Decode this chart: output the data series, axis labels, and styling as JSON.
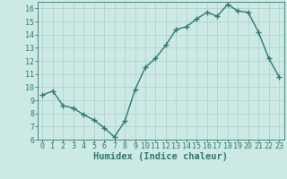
{
  "x": [
    0,
    1,
    2,
    3,
    4,
    5,
    6,
    7,
    8,
    9,
    10,
    11,
    12,
    13,
    14,
    15,
    16,
    17,
    18,
    19,
    20,
    21,
    22,
    23
  ],
  "y": [
    9.4,
    9.7,
    8.6,
    8.4,
    7.9,
    7.5,
    6.9,
    6.2,
    7.4,
    9.8,
    11.5,
    12.2,
    13.2,
    14.4,
    14.6,
    15.2,
    15.7,
    15.4,
    16.3,
    15.8,
    15.7,
    14.2,
    12.2,
    10.8
  ],
  "line_color": "#2d7a6e",
  "marker": "+",
  "marker_size": 4,
  "marker_linewidth": 1.0,
  "bg_color": "#cce9e5",
  "grid_color": "#aacfcc",
  "xlabel": "Humidex (Indice chaleur)",
  "xlabel_fontsize": 7.5,
  "ylim": [
    6,
    16.5
  ],
  "xlim": [
    -0.5,
    23.5
  ],
  "yticks": [
    6,
    7,
    8,
    9,
    10,
    11,
    12,
    13,
    14,
    15,
    16
  ],
  "xticks": [
    0,
    1,
    2,
    3,
    4,
    5,
    6,
    7,
    8,
    9,
    10,
    11,
    12,
    13,
    14,
    15,
    16,
    17,
    18,
    19,
    20,
    21,
    22,
    23
  ],
  "tick_fontsize": 6,
  "axis_color": "#2d7a6e",
  "line_width": 1.0
}
